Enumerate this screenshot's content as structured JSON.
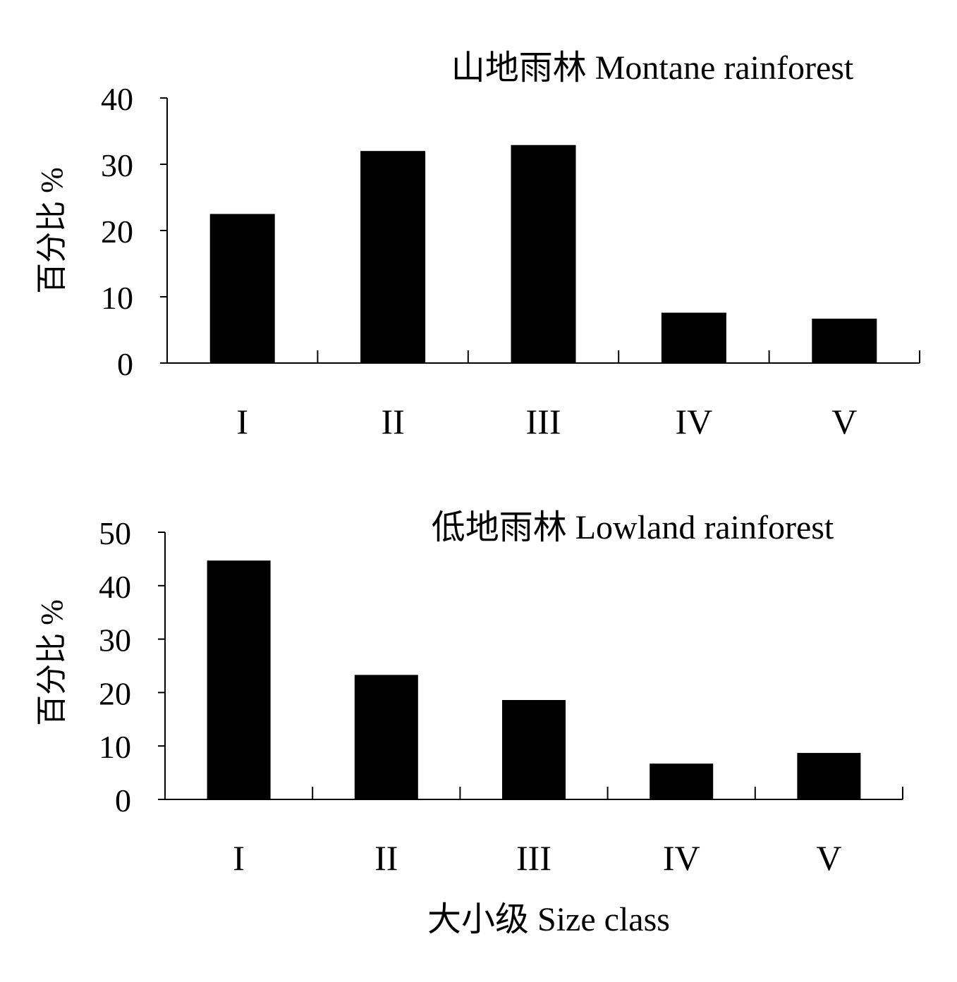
{
  "chart_data": [
    {
      "type": "bar",
      "title": "山地雨林 Montane rainforest",
      "ylabel": "百分比 %",
      "xlabel": "",
      "categories": [
        "I",
        "II",
        "III",
        "IV",
        "V"
      ],
      "values": [
        22.5,
        32.0,
        32.9,
        7.6,
        6.7
      ],
      "ylim": [
        0,
        40
      ],
      "yticks": [
        0,
        10,
        20,
        30,
        40
      ],
      "grid": false,
      "bar_color": "#000000"
    },
    {
      "type": "bar",
      "title": "低地雨林  Lowland rainforest",
      "ylabel": "百分比 %",
      "xlabel": "大小级 Size class",
      "categories": [
        "I",
        "II",
        "III",
        "IV",
        "V"
      ],
      "values": [
        44.7,
        23.3,
        18.6,
        6.7,
        8.7
      ],
      "ylim": [
        0,
        50
      ],
      "yticks": [
        0,
        10,
        20,
        30,
        40,
        50
      ],
      "grid": false,
      "bar_color": "#000000"
    }
  ]
}
